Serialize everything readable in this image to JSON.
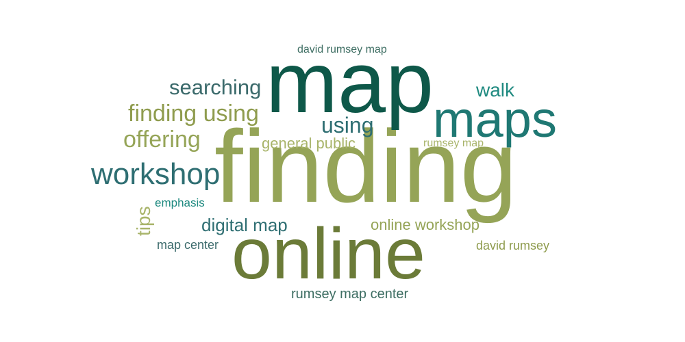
{
  "words": [
    {
      "text": "finding",
      "color": "#95A457"
    },
    {
      "text": "map",
      "color": "#0E5849"
    },
    {
      "text": "online",
      "color": "#6B7B38"
    },
    {
      "text": "maps",
      "color": "#1F7873"
    },
    {
      "text": "workshop",
      "color": "#2E6E72"
    },
    {
      "text": "finding using",
      "color": "#8F9C4E"
    },
    {
      "text": "searching",
      "color": "#3B6A6B"
    },
    {
      "text": "offering",
      "color": "#95A457"
    },
    {
      "text": "using",
      "color": "#2E6E72"
    },
    {
      "text": "digital map",
      "color": "#2E6E72"
    },
    {
      "text": "online workshop",
      "color": "#95A457"
    },
    {
      "text": "walk",
      "color": "#1F8A80"
    },
    {
      "text": "general public",
      "color": "#A8B46A"
    },
    {
      "text": "tips",
      "color": "#A8B46A"
    },
    {
      "text": "david rumsey map",
      "color": "#3E6E63"
    },
    {
      "text": "rumsey map center",
      "color": "#3E6E63"
    },
    {
      "text": "map center",
      "color": "#3B6A6B"
    },
    {
      "text": "david rumsey",
      "color": "#8F9C4E"
    },
    {
      "text": "rumsey map",
      "color": "#A8B46A"
    },
    {
      "text": "emphasis",
      "color": "#1F8A80"
    }
  ]
}
